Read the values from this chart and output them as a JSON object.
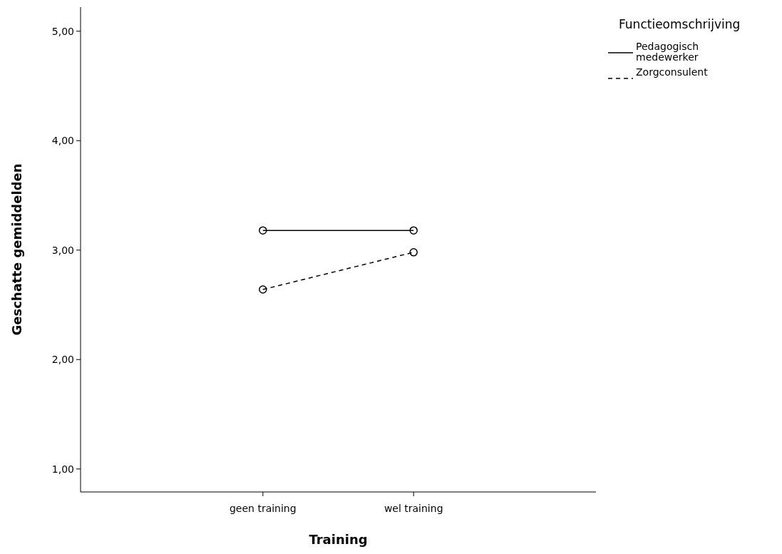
{
  "chart_data": {
    "type": "line",
    "xlabel": "Training",
    "ylabel": "Geschatte gemiddelden",
    "legend_title": "Functieomschrijving",
    "categories": [
      "geen training",
      "wel training"
    ],
    "series": [
      {
        "name": "Pedagogisch medewerker",
        "color": "#000000",
        "values": [
          3.18,
          3.18
        ],
        "line_style": "solid"
      },
      {
        "name": "Zorgconsulent",
        "color": "#000000",
        "values": [
          2.64,
          2.98
        ],
        "line_style": "dashed"
      }
    ],
    "ylim": [
      0.79,
      5.22
    ],
    "yticks": [
      {
        "value": 1,
        "label": "1,00"
      },
      {
        "value": 2,
        "label": "2,00"
      },
      {
        "value": 3,
        "label": "3,00"
      },
      {
        "value": 4,
        "label": "4,00"
      },
      {
        "value": 5,
        "label": "5,00"
      }
    ],
    "marker": "circle",
    "legend": "top right",
    "grid": false
  }
}
